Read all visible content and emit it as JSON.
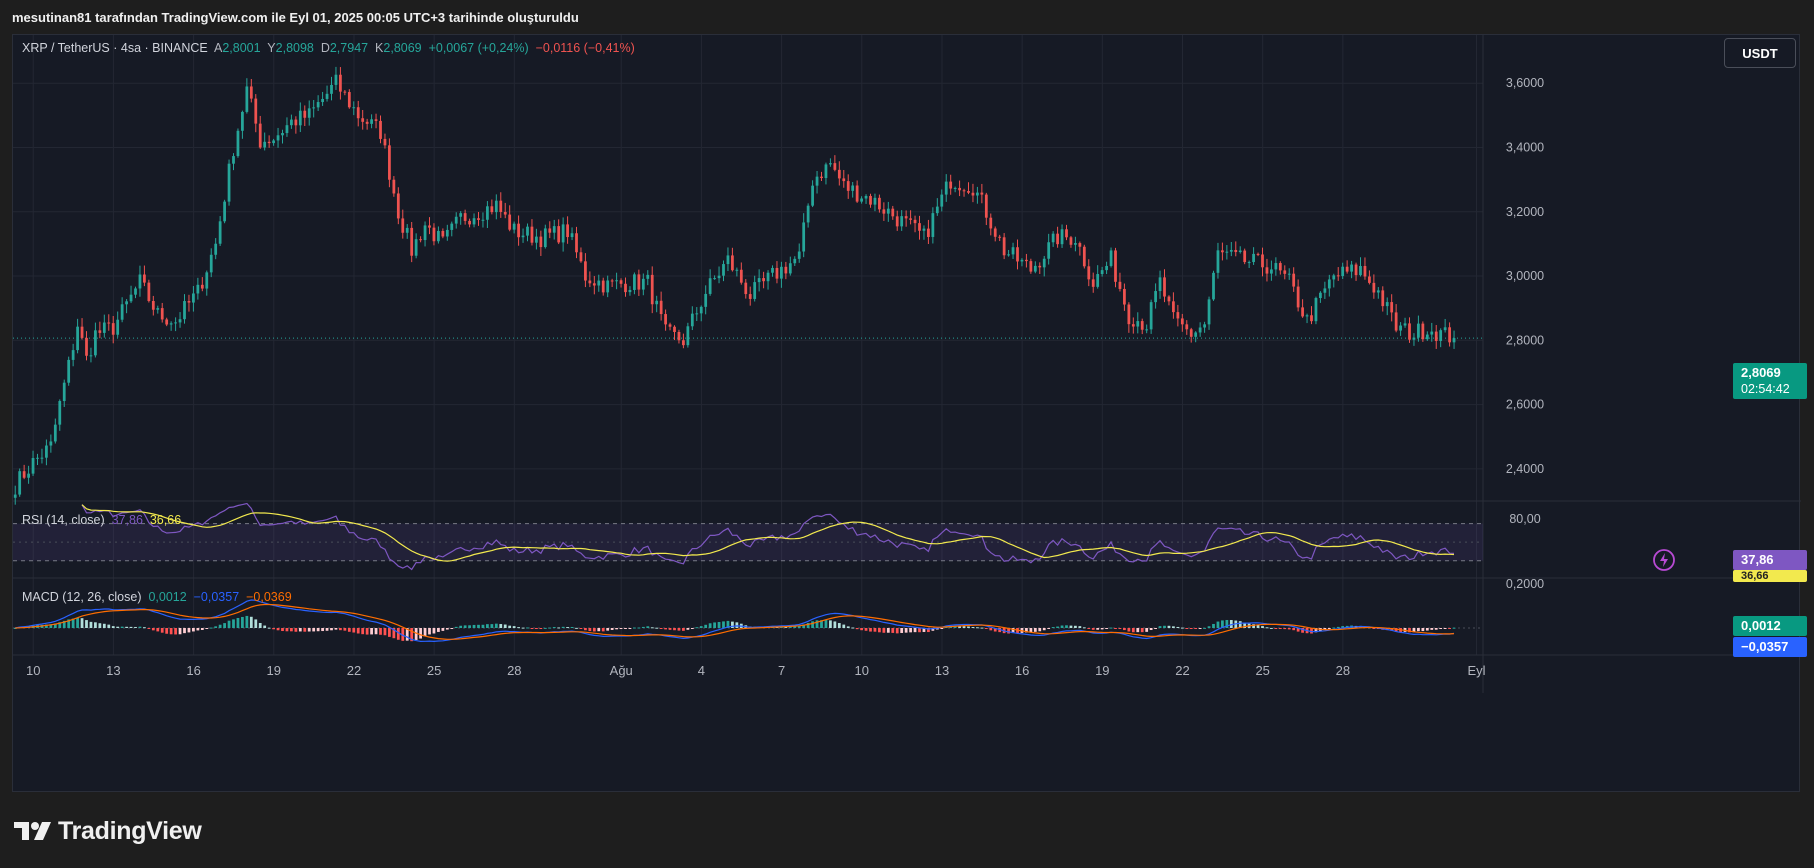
{
  "title": "mesutinan81 tarafından TradingView.com ile Eyl 01, 2025 00:05 UTC+3 tarihinde oluşturuldu",
  "brand": "TradingView",
  "currency_button": "USDT",
  "colors": {
    "up": "#26a69a",
    "down": "#ef5350",
    "rsi": "#7e57c2",
    "rsi_ma": "#f2e94e",
    "macd": "#2962ff",
    "signal": "#ff6d00"
  },
  "header": {
    "symbol": "XRP / TetherUS · 4sa · BINANCE",
    "o_label": "A",
    "o": "2,8001",
    "h_label": "Y",
    "h": "2,8098",
    "l_label": "D",
    "l": "2,7947",
    "c_label": "K",
    "c": "2,8069",
    "change": "+0,0067 (+0,24%)",
    "ext_change": "−0,0116 (−0,41%)"
  },
  "price_tag": {
    "price": "2,8069",
    "countdown": "02:54:42"
  },
  "rsi_header": {
    "label": "RSI (14, close)",
    "rsi": "37,86",
    "ma": "36,66"
  },
  "rsi_tags": {
    "rsi": "37,86",
    "ma": "36,66"
  },
  "macd_header": {
    "label": "MACD (12, 26, close)",
    "hist": "0,0012",
    "macd": "−0,0357",
    "signal": "−0,0369"
  },
  "macd_tags": {
    "hist": "0,0012",
    "macd": "−0,0357"
  },
  "chart_data": {
    "type": "candlestick",
    "symbol": "XRP/USDT",
    "interval": "4h",
    "x_tick_labels": [
      "10",
      "13",
      "16",
      "19",
      "22",
      "25",
      "28",
      "Ağu",
      "4",
      "7",
      "10",
      "13",
      "16",
      "19",
      "22",
      "25",
      "28",
      "Eyl"
    ],
    "x_tick_index": [
      0,
      18,
      36,
      54,
      72,
      90,
      108,
      132,
      150,
      168,
      186,
      204,
      222,
      240,
      258,
      276,
      294,
      324
    ],
    "y_axis": {
      "ticks": [
        "3,6000",
        "3,4000",
        "3,2000",
        "3,0000",
        "2,8000",
        "2,6000",
        "2,4000"
      ],
      "tick_values": [
        3.6,
        3.4,
        3.2,
        3.0,
        2.8,
        2.6,
        2.4
      ],
      "range": [
        2.3,
        3.75
      ]
    },
    "anchors": [
      [
        0,
        2.35
      ],
      [
        4,
        2.42
      ],
      [
        8,
        2.47
      ],
      [
        10,
        2.6
      ],
      [
        12,
        2.72
      ],
      [
        14,
        2.85
      ],
      [
        16,
        2.74
      ],
      [
        18,
        2.82
      ],
      [
        22,
        2.84
      ],
      [
        28,
        2.98
      ],
      [
        32,
        2.88
      ],
      [
        36,
        2.86
      ],
      [
        41,
        2.95
      ],
      [
        45,
        3.1
      ],
      [
        49,
        3.4
      ],
      [
        52,
        3.58
      ],
      [
        55,
        3.42
      ],
      [
        58,
        3.43
      ],
      [
        62,
        3.48
      ],
      [
        66,
        3.5
      ],
      [
        72,
        3.6
      ],
      [
        77,
        3.5
      ],
      [
        82,
        3.45
      ],
      [
        86,
        3.2
      ],
      [
        89,
        3.08
      ],
      [
        92,
        3.16
      ],
      [
        96,
        3.1
      ],
      [
        100,
        3.18
      ],
      [
        104,
        3.2
      ],
      [
        108,
        3.22
      ],
      [
        112,
        3.14
      ],
      [
        118,
        3.12
      ],
      [
        124,
        3.14
      ],
      [
        128,
        3.0
      ],
      [
        133,
        2.97
      ],
      [
        138,
        2.98
      ],
      [
        142,
        2.98
      ],
      [
        146,
        2.82
      ],
      [
        150,
        2.8
      ],
      [
        155,
        2.95
      ],
      [
        160,
        3.05
      ],
      [
        165,
        2.94
      ],
      [
        170,
        3.0
      ],
      [
        176,
        3.06
      ],
      [
        179,
        3.3
      ],
      [
        183,
        3.35
      ],
      [
        186,
        3.28
      ],
      [
        192,
        3.24
      ],
      [
        198,
        3.18
      ],
      [
        204,
        3.12
      ],
      [
        210,
        3.3
      ],
      [
        215,
        3.28
      ],
      [
        218,
        3.2
      ],
      [
        222,
        3.08
      ],
      [
        228,
        3.02
      ],
      [
        234,
        3.12
      ],
      [
        238,
        3.12
      ],
      [
        242,
        2.98
      ],
      [
        246,
        3.05
      ],
      [
        250,
        2.88
      ],
      [
        254,
        2.85
      ],
      [
        257,
        2.98
      ],
      [
        260,
        2.86
      ],
      [
        264,
        2.82
      ],
      [
        267,
        2.85
      ],
      [
        270,
        3.07
      ],
      [
        275,
        3.05
      ],
      [
        282,
        3.03
      ],
      [
        286,
        2.98
      ],
      [
        290,
        2.86
      ],
      [
        296,
        3.0
      ],
      [
        302,
        3.02
      ],
      [
        306,
        2.95
      ],
      [
        310,
        2.84
      ],
      [
        314,
        2.82
      ],
      [
        317,
        2.84
      ],
      [
        320,
        2.82
      ],
      [
        323,
        2.81
      ]
    ],
    "last_close": 2.8069,
    "rsi": {
      "period": 14,
      "last": 37.86,
      "ma_last": 36.66,
      "axis_label": "80,00",
      "upper_band": 70,
      "lower_band": 30
    },
    "macd": {
      "fast": 12,
      "slow": 26,
      "hist_last": 0.0012,
      "macd_last": -0.0357,
      "signal_last": -0.0369,
      "axis_label": "0,2000"
    }
  }
}
